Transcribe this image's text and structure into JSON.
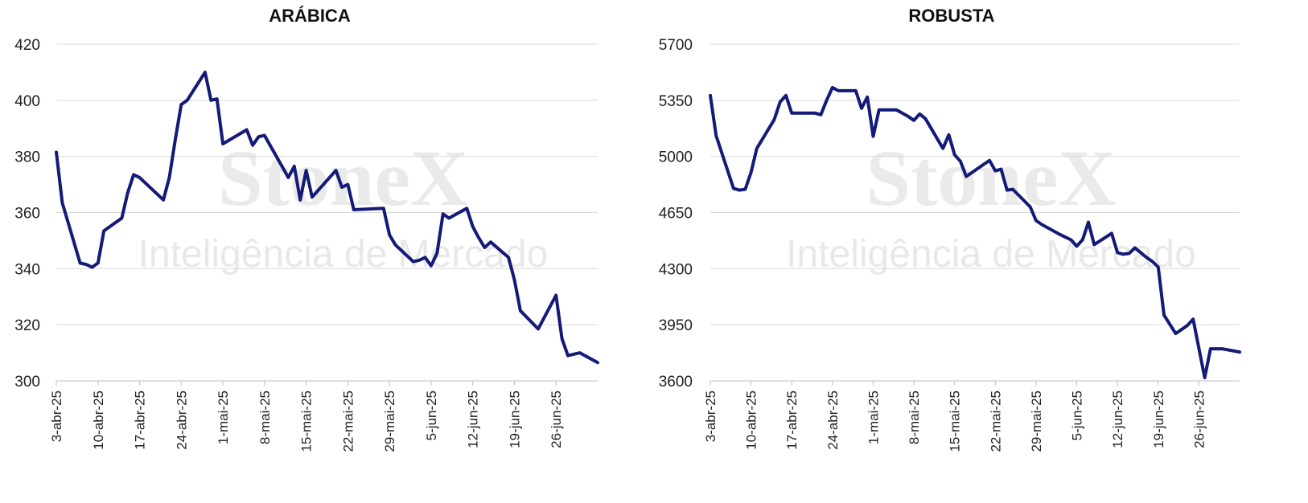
{
  "watermark": {
    "brand": "StoneX",
    "tagline": "Inteligência de Mercado"
  },
  "chart_data": [
    {
      "type": "line",
      "title": "ARÁBICA",
      "xlabel": "",
      "ylabel": "",
      "ylim": [
        300,
        420
      ],
      "yticks": [
        "300",
        "320",
        "340",
        "360",
        "380",
        "400",
        "420"
      ],
      "xticks": [
        "3-abr-25",
        "10-abr-25",
        "17-abr-25",
        "24-abr-25",
        "1-mai-25",
        "8-mai-25",
        "15-mai-25",
        "22-mai-25",
        "29-mai-25",
        "5-jun-25",
        "12-jun-25",
        "19-jun-25",
        "26-jun-25"
      ],
      "grid": true,
      "color": "#131a78",
      "series": [
        {
          "values": [
            [
              "2025-04-03",
              381.5
            ],
            [
              "2025-04-04",
              363.5
            ],
            [
              "2025-04-07",
              342
            ],
            [
              "2025-04-08",
              341.5
            ],
            [
              "2025-04-09",
              340.5
            ],
            [
              "2025-04-10",
              342
            ],
            [
              "2025-04-11",
              353.5
            ],
            [
              "2025-04-14",
              358
            ],
            [
              "2025-04-15",
              367
            ],
            [
              "2025-04-16",
              373.5
            ],
            [
              "2025-04-17",
              372.5
            ],
            [
              "2025-04-21",
              364.5
            ],
            [
              "2025-04-22",
              372.5
            ],
            [
              "2025-04-23",
              386
            ],
            [
              "2025-04-24",
              398.5
            ],
            [
              "2025-04-25",
              400
            ],
            [
              "2025-04-28",
              410
            ],
            [
              "2025-04-29",
              400
            ],
            [
              "2025-04-30",
              400.5
            ],
            [
              "2025-05-01",
              384.5
            ],
            [
              "2025-05-05",
              389.5
            ],
            [
              "2025-05-06",
              384
            ],
            [
              "2025-05-07",
              387
            ],
            [
              "2025-05-08",
              387.5
            ],
            [
              "2025-05-12",
              372.5
            ],
            [
              "2025-05-13",
              376.5
            ],
            [
              "2025-05-14",
              364.5
            ],
            [
              "2025-05-15",
              375
            ],
            [
              "2025-05-16",
              365.5
            ],
            [
              "2025-05-20",
              375
            ],
            [
              "2025-05-21",
              369
            ],
            [
              "2025-05-22",
              370
            ],
            [
              "2025-05-23",
              361
            ],
            [
              "2025-05-28",
              361.5
            ],
            [
              "2025-05-29",
              352
            ],
            [
              "2025-05-30",
              348.5
            ],
            [
              "2025-06-02",
              342.5
            ],
            [
              "2025-06-03",
              343
            ],
            [
              "2025-06-04",
              344
            ],
            [
              "2025-06-05",
              341
            ],
            [
              "2025-06-06",
              345.5
            ],
            [
              "2025-06-07",
              359.5
            ],
            [
              "2025-06-08",
              358
            ],
            [
              "2025-06-11",
              361.5
            ],
            [
              "2025-06-12",
              355
            ],
            [
              "2025-06-13",
              351
            ],
            [
              "2025-06-14",
              347.5
            ],
            [
              "2025-06-15",
              349.5
            ],
            [
              "2025-06-18",
              344
            ],
            [
              "2025-06-19",
              336
            ],
            [
              "2025-06-20",
              325
            ],
            [
              "2025-06-23",
              318.5
            ],
            [
              "2025-06-26",
              330.5
            ],
            [
              "2025-06-27",
              315
            ],
            [
              "2025-06-28",
              309
            ],
            [
              "2025-06-29",
              309.5
            ],
            [
              "2025-06-30",
              310
            ],
            [
              "2025-07-03",
              306.5
            ]
          ]
        }
      ]
    },
    {
      "type": "line",
      "title": "ROBUSTA",
      "xlabel": "",
      "ylabel": "",
      "ylim": [
        3600,
        5700
      ],
      "yticks": [
        "3600",
        "3950",
        "4300",
        "4650",
        "5000",
        "5350",
        "5700"
      ],
      "xticks": [
        "3-abr-25",
        "10-abr-25",
        "17-abr-25",
        "24-abr-25",
        "1-mai-25",
        "8-mai-25",
        "15-mai-25",
        "22-mai-25",
        "29-mai-25",
        "5-jun-25",
        "12-jun-25",
        "19-jun-25",
        "26-jun-25"
      ],
      "grid": true,
      "color": "#131a78",
      "series": [
        {
          "values": [
            [
              "2025-04-03",
              5380
            ],
            [
              "2025-04-04",
              5130
            ],
            [
              "2025-04-07",
              4800
            ],
            [
              "2025-04-08",
              4790
            ],
            [
              "2025-04-09",
              4795
            ],
            [
              "2025-04-10",
              4900
            ],
            [
              "2025-04-11",
              5050
            ],
            [
              "2025-04-14",
              5230
            ],
            [
              "2025-04-15",
              5340
            ],
            [
              "2025-04-16",
              5380
            ],
            [
              "2025-04-17",
              5270
            ],
            [
              "2025-04-21",
              5270
            ],
            [
              "2025-04-22",
              5260
            ],
            [
              "2025-04-23",
              5350
            ],
            [
              "2025-04-24",
              5430
            ],
            [
              "2025-04-25",
              5410
            ],
            [
              "2025-04-28",
              5410
            ],
            [
              "2025-04-29",
              5300
            ],
            [
              "2025-04-30",
              5370
            ],
            [
              "2025-05-01",
              5125
            ],
            [
              "2025-05-02",
              5290
            ],
            [
              "2025-05-05",
              5290
            ],
            [
              "2025-05-07",
              5250
            ],
            [
              "2025-05-08",
              5225
            ],
            [
              "2025-05-09",
              5265
            ],
            [
              "2025-05-10",
              5235
            ],
            [
              "2025-05-13",
              5050
            ],
            [
              "2025-05-14",
              5135
            ],
            [
              "2025-05-15",
              5010
            ],
            [
              "2025-05-16",
              4970
            ],
            [
              "2025-05-17",
              4875
            ],
            [
              "2025-05-20",
              4950
            ],
            [
              "2025-05-21",
              4975
            ],
            [
              "2025-05-22",
              4910
            ],
            [
              "2025-05-23",
              4920
            ],
            [
              "2025-05-24",
              4790
            ],
            [
              "2025-05-25",
              4795
            ],
            [
              "2025-05-28",
              4685
            ],
            [
              "2025-05-29",
              4600
            ],
            [
              "2025-05-30",
              4575
            ],
            [
              "2025-06-02",
              4515
            ],
            [
              "2025-06-04",
              4480
            ],
            [
              "2025-06-05",
              4440
            ],
            [
              "2025-06-06",
              4480
            ],
            [
              "2025-06-07",
              4590
            ],
            [
              "2025-06-08",
              4450
            ],
            [
              "2025-06-11",
              4520
            ],
            [
              "2025-06-12",
              4400
            ],
            [
              "2025-06-13",
              4390
            ],
            [
              "2025-06-14",
              4395
            ],
            [
              "2025-06-15",
              4430
            ],
            [
              "2025-06-17",
              4370
            ],
            [
              "2025-06-18",
              4345
            ],
            [
              "2025-06-19",
              4310
            ],
            [
              "2025-06-20",
              4010
            ],
            [
              "2025-06-22",
              3895
            ],
            [
              "2025-06-24",
              3945
            ],
            [
              "2025-06-25",
              3985
            ],
            [
              "2025-06-27",
              3620
            ],
            [
              "2025-06-28",
              3800
            ],
            [
              "2025-06-29",
              3800
            ],
            [
              "2025-06-30",
              3800
            ],
            [
              "2025-07-03",
              3780
            ]
          ]
        }
      ]
    }
  ]
}
